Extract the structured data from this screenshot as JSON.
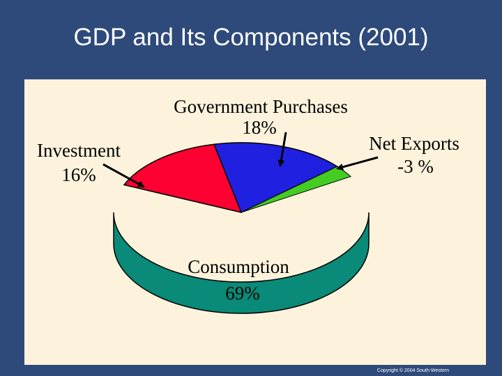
{
  "slide": {
    "title": "GDP and Its Components (2001)",
    "copyright": "Copyright © 2004 South-Western"
  },
  "colors": {
    "background": "#2e4a7a",
    "panel": "#fdf3dc"
  },
  "chart_data": {
    "type": "pie",
    "title": "GDP and Its Components (2001)",
    "slices": [
      {
        "name": "Consumption",
        "value": 69,
        "label": "Consumption",
        "value_label": "69%",
        "color": "#00e0c8",
        "side_color": "#0a8a78"
      },
      {
        "name": "Investment",
        "value": 16,
        "label": "Investment",
        "value_label": "16%",
        "color": "#ff0033",
        "side_color": "#a00020"
      },
      {
        "name": "Government Purchases",
        "value": 18,
        "label": "Government Purchases",
        "value_label": "18%",
        "color": "#2020e0",
        "side_color": "#101080"
      },
      {
        "name": "Net Exports",
        "value": -3,
        "label": "Net Exports",
        "value_label": "-3 %",
        "color": "#44cc22",
        "side_color": "#227711"
      }
    ]
  }
}
